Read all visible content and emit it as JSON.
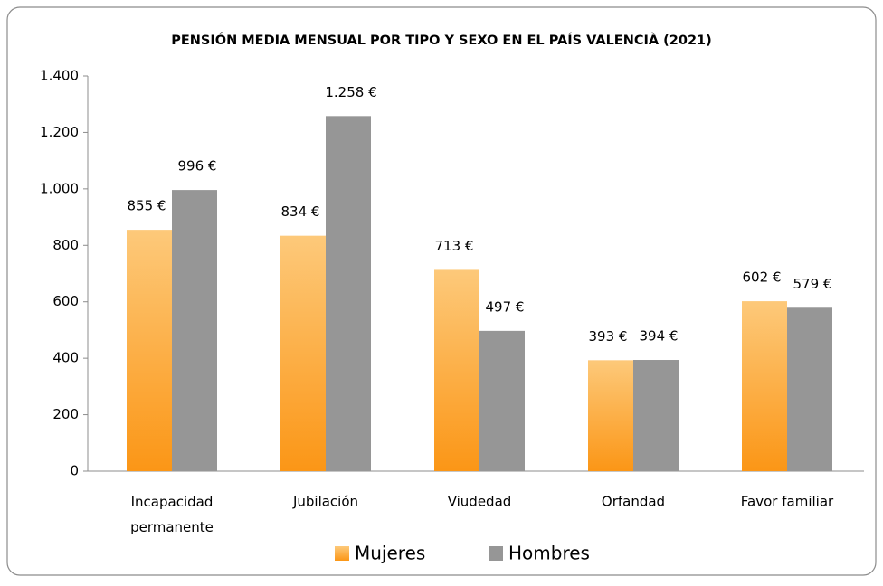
{
  "chart_data": {
    "type": "bar",
    "title": "PENSIÓN MEDIA MENSUAL POR TIPO Y SEXO EN EL PAÍS VALENCIÀ (2021)",
    "categories": [
      "Incapacidad permanente",
      "Jubilación",
      "Viudedad",
      "Orfandad",
      "Favor familiar"
    ],
    "series": [
      {
        "name": "Mujeres",
        "color": "#fba63a",
        "values": [
          855,
          834,
          713,
          393,
          602
        ],
        "value_labels": [
          "855 €",
          "834 €",
          "713 €",
          "393 €",
          "602 €"
        ]
      },
      {
        "name": "Hombres",
        "color": "#969696",
        "values": [
          996,
          1258,
          497,
          394,
          579
        ],
        "value_labels": [
          "996 €",
          "1.258 €",
          "497 €",
          "394 €",
          "579 €"
        ]
      }
    ],
    "ylim": [
      0,
      1400
    ],
    "yticks": [
      0,
      200,
      400,
      600,
      800,
      {
        "value": 1000,
        "label": "1.000"
      },
      {
        "value": 1200,
        "label": "1.200"
      },
      {
        "value": 1400,
        "label": "1.400"
      }
    ],
    "legend": "bottom"
  }
}
